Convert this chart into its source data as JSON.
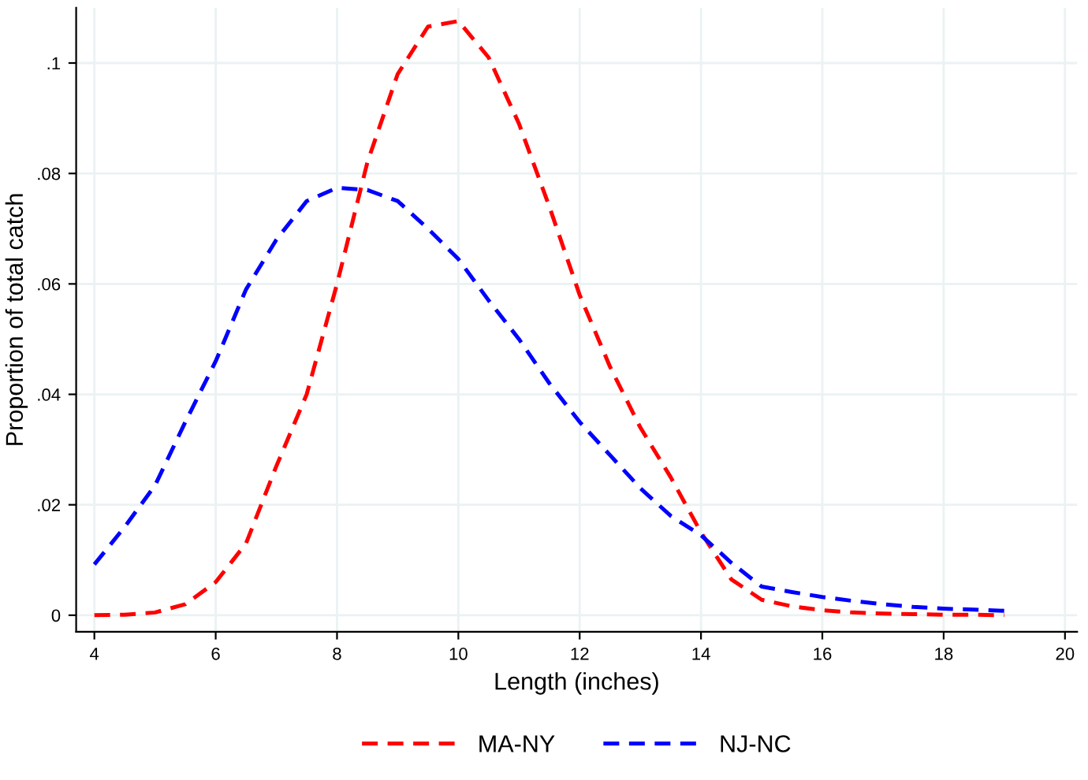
{
  "chart_data": {
    "type": "line",
    "xlabel": "Length (inches)",
    "ylabel": "Proportion of total catch",
    "x": [
      4,
      4.5,
      5,
      5.5,
      6,
      6.5,
      7,
      7.5,
      8,
      8.5,
      9,
      9.5,
      10,
      10.5,
      11,
      11.5,
      12,
      12.5,
      13,
      13.5,
      14,
      14.5,
      15,
      15.5,
      16,
      16.5,
      17,
      17.5,
      18,
      18.5,
      19
    ],
    "series": [
      {
        "name": "MA-NY",
        "color": "#ff0000",
        "values": [
          0,
          0.0001,
          0.0005,
          0.002,
          0.006,
          0.013,
          0.027,
          0.04,
          0.06,
          0.082,
          0.098,
          0.1066,
          0.1076,
          0.101,
          0.089,
          0.074,
          0.058,
          0.045,
          0.034,
          0.025,
          0.015,
          0.0065,
          0.0028,
          0.0016,
          0.0009,
          0.0005,
          0.0003,
          0.0002,
          0.0001,
          0.0001,
          0
        ]
      },
      {
        "name": "NJ-NC",
        "color": "#0000ff",
        "values": [
          0.0092,
          0.016,
          0.0235,
          0.035,
          0.046,
          0.059,
          0.068,
          0.075,
          0.0774,
          0.077,
          0.075,
          0.07,
          0.0645,
          0.057,
          0.05,
          0.042,
          0.035,
          0.029,
          0.023,
          0.018,
          0.0145,
          0.0095,
          0.0052,
          0.0042,
          0.0033,
          0.0026,
          0.002,
          0.0015,
          0.0012,
          0.001,
          0.0008
        ]
      }
    ],
    "xlim": [
      3.7,
      20.2
    ],
    "xticks": [
      4,
      6,
      8,
      10,
      12,
      14,
      16,
      18,
      20
    ],
    "ylim": [
      -0.003,
      0.11
    ],
    "yticks": [
      {
        "value": 0,
        "label": "0"
      },
      {
        "value": 0.02,
        "label": ".02"
      },
      {
        "value": 0.04,
        "label": ".04"
      },
      {
        "value": 0.06,
        "label": ".06"
      },
      {
        "value": 0.08,
        "label": ".08"
      },
      {
        "value": 0.1,
        "label": ".1"
      }
    ],
    "grid": true,
    "legend": "bottom",
    "line_style": "dashed",
    "marker": "none"
  }
}
